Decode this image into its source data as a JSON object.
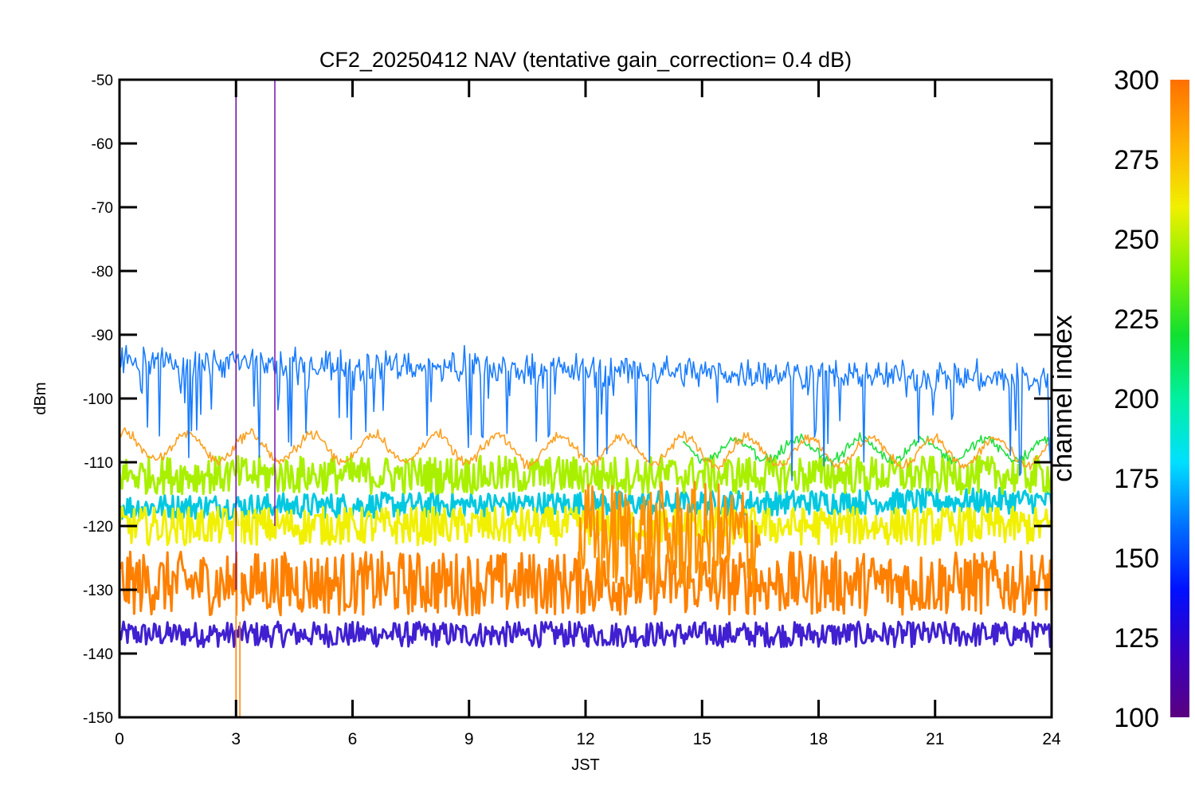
{
  "chart_data": {
    "type": "line",
    "title": "CF2_20250412 NAV (tentative gain_correction=  0.4 dB)",
    "xlabel": "JST",
    "ylabel": "dBm",
    "xlim": [
      0,
      24
    ],
    "ylim": [
      -150,
      -50
    ],
    "x_ticks": [
      "0",
      "3",
      "6",
      "9",
      "12",
      "15",
      "18",
      "21",
      "24"
    ],
    "x_tick_values": [
      0,
      3,
      6,
      9,
      12,
      15,
      18,
      21,
      24
    ],
    "y_ticks": [
      "-50",
      "-60",
      "-70",
      "-80",
      "-90",
      "-100",
      "-110",
      "-120",
      "-130",
      "-140",
      "-150"
    ],
    "y_tick_values": [
      -50,
      -60,
      -70,
      -80,
      -90,
      -100,
      -110,
      -120,
      -130,
      -140,
      -150
    ],
    "grid": false,
    "colorbar": {
      "label": "channel index",
      "range": [
        100,
        300
      ],
      "ticks": [
        "300",
        "275",
        "250",
        "225",
        "200",
        "175",
        "150",
        "125",
        "100"
      ],
      "tick_values": [
        300,
        275,
        250,
        225,
        200,
        175,
        150,
        125,
        100
      ],
      "colormap": "rainbow (purple to orange)"
    },
    "series": [
      {
        "channel": 150,
        "color": "#1a7cff",
        "mean_start": -94,
        "mean_end": -97,
        "noise": 1.2,
        "dips": true
      },
      {
        "channel": 290,
        "color": "#ffa020",
        "mean_start": -107.5,
        "mean_end": -108.5,
        "oscillation_amp": 2.2,
        "oscillation_period_h": 1.6
      },
      {
        "channel": 240,
        "color": "#20e040",
        "mean_start": -108,
        "mean_end": -108,
        "oscillation_amp": 1.6,
        "oscillation_period_h": 1.6,
        "start_h": 14.5
      },
      {
        "channel": 260,
        "color": "#a8f000",
        "mean_start": -112,
        "mean_end": -112,
        "noise_band": 3
      },
      {
        "channel": 270,
        "color": "#f0f000",
        "mean_start": -120,
        "mean_end": -120,
        "noise_band": 3
      },
      {
        "channel": 295,
        "color": "#ff8000",
        "mean_start": -129,
        "mean_end": -129,
        "noise_band": 5
      },
      {
        "channel": 290,
        "color": "#ff9000",
        "mean_start": -122,
        "mean_end": -122,
        "burst_from_h": 11.8,
        "burst_to_h": 16.5
      },
      {
        "channel": 125,
        "color": "#4020d0",
        "mean_start": -137,
        "mean_end": -137,
        "noise_band": 2
      },
      {
        "channel": 180,
        "color": "#00c8e0",
        "mean_start": -117,
        "mean_end": -116,
        "noise_band": 2
      }
    ],
    "vertical_spikes": [
      {
        "x": 3.0,
        "color": "#6a0aa0",
        "from": -150,
        "to": -50
      },
      {
        "x": 4.0,
        "color": "#7a10b0",
        "from": -120,
        "to": -50
      },
      {
        "x": 3.0,
        "color": "#ff8000",
        "from": -150,
        "to": -130
      },
      {
        "x": 3.1,
        "color": "#ff8000",
        "from": -150,
        "to": -130
      }
    ]
  }
}
